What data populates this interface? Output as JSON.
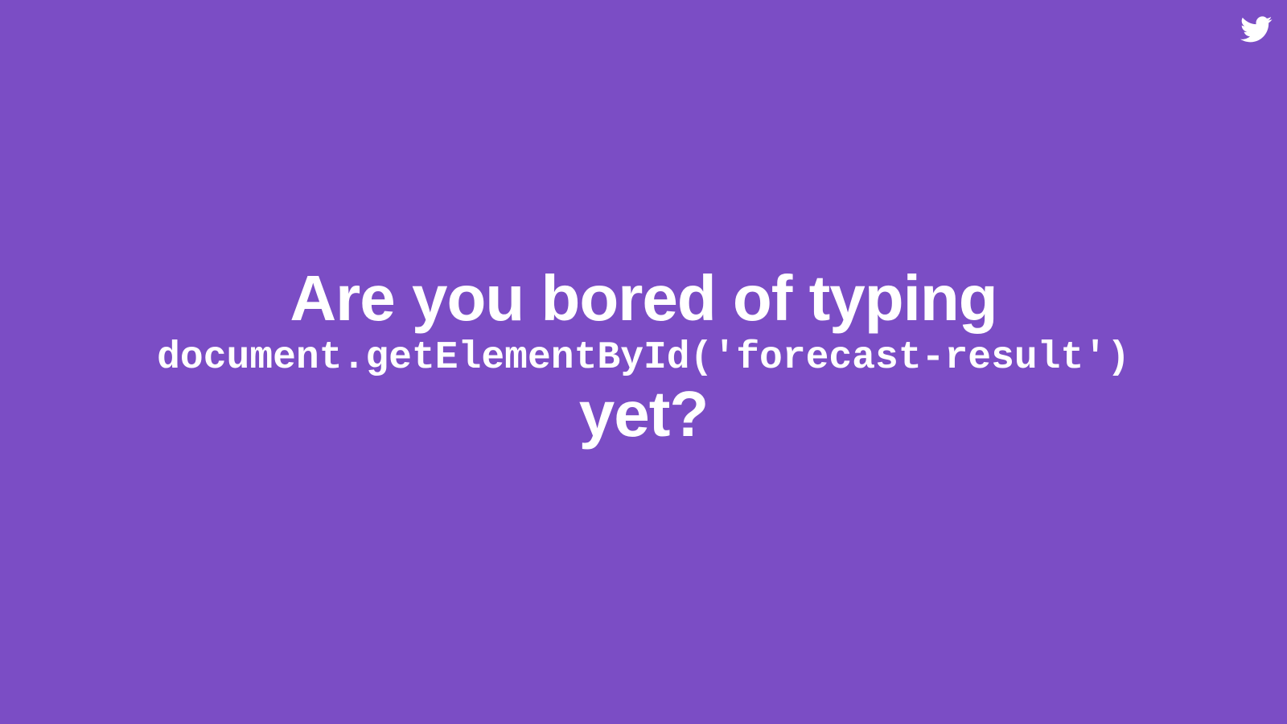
{
  "slide": {
    "background_color": "#7b4dc5",
    "text_color": "#ffffff",
    "corner_icon": "twitter-bird-icon",
    "line_1": "Are you bored of typing",
    "line_2": "document.getElementById('forecast-result')",
    "line_3": "yet?"
  }
}
